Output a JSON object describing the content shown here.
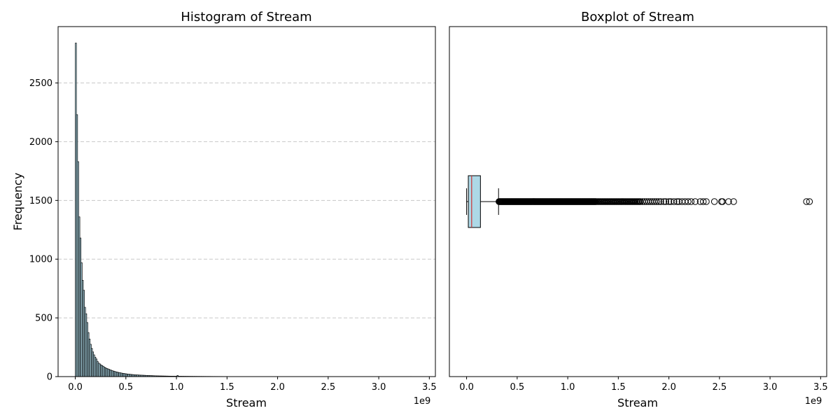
{
  "chart_data": [
    {
      "type": "bar",
      "title": "Histogram of Stream",
      "xlabel": "Stream",
      "ylabel": "Frequency",
      "x_offset_label": "1e9",
      "xlim": [
        -0.17,
        3.56
      ],
      "ylim": [
        0,
        2980
      ],
      "x_ticks": [
        0.0,
        0.5,
        1.0,
        1.5,
        2.0,
        2.5,
        3.0,
        3.5
      ],
      "x_tick_labels": [
        "0.0",
        "0.5",
        "1.0",
        "1.5",
        "2.0",
        "2.5",
        "3.0",
        "3.5"
      ],
      "y_ticks": [
        0,
        500,
        1000,
        1500,
        2000,
        2500
      ],
      "y_tick_labels": [
        "0",
        "500",
        "1000",
        "1500",
        "2000",
        "2500"
      ],
      "grid": "y-dashed",
      "bar_color": "#add8e6",
      "edge_color": "#000000",
      "bin_width": 0.0113,
      "bin_starts": [
        0.0,
        0.0113,
        0.0226,
        0.0339,
        0.0452,
        0.0565,
        0.0678,
        0.0791,
        0.0904,
        0.1017,
        0.113,
        0.1243,
        0.1356,
        0.1469,
        0.1582,
        0.1695,
        0.1808,
        0.1921,
        0.2034,
        0.2147,
        0.226,
        0.2373,
        0.2486,
        0.2599,
        0.2712,
        0.2825,
        0.2938,
        0.3051,
        0.3164,
        0.3277,
        0.339,
        0.3503,
        0.3616,
        0.3729,
        0.3842,
        0.3955,
        0.4068,
        0.4181,
        0.4294,
        0.4407,
        0.452,
        0.4633,
        0.4746,
        0.4859,
        0.4972,
        0.5085,
        0.5198,
        0.5311,
        0.5424,
        0.5537,
        0.565,
        0.5763,
        0.5876,
        0.5989,
        0.6102,
        0.6215,
        0.6328,
        0.6441,
        0.6554,
        0.6667,
        0.678,
        0.6893,
        0.7006,
        0.7119,
        0.7232,
        0.7345,
        0.7458,
        0.7571,
        0.7684,
        0.7797,
        0.791,
        0.8023,
        0.8136,
        0.8249,
        0.8362,
        0.8475,
        0.8588,
        0.8701,
        0.8814,
        0.8927,
        0.904,
        0.9153,
        0.9266,
        0.9379,
        0.9492,
        0.9605,
        0.9718,
        0.9831,
        0.9944,
        1.0057,
        1.017,
        1.0283,
        1.0396,
        1.0509,
        1.0622,
        1.0735,
        1.0848,
        1.0961,
        1.1074,
        1.1187,
        1.13,
        1.1413,
        1.1526,
        1.1639,
        1.1752,
        1.1865,
        1.1978,
        1.2091,
        1.2204,
        1.2317,
        1.243,
        1.2543,
        1.2656,
        1.2769,
        1.2882,
        1.2995,
        1.3108,
        1.3221,
        1.3334,
        1.3447,
        1.356,
        1.3673,
        1.3786,
        1.3899,
        1.4012,
        1.4125,
        1.4238,
        1.4351,
        1.4464,
        1.4577,
        1.469,
        1.4803,
        1.4916,
        1.5029,
        1.5142,
        1.5255,
        1.5368,
        1.5481,
        1.5594,
        1.5707,
        1.582,
        1.5933,
        1.6046,
        1.6159,
        1.6272,
        1.6385,
        1.6498,
        1.6611,
        1.6724,
        1.6837,
        1.695,
        1.7063,
        1.7176,
        1.7289,
        1.7402,
        1.7515,
        1.7628,
        1.7741,
        1.7854,
        1.7967,
        1.808,
        1.8193,
        1.8306,
        1.8419,
        1.8532,
        1.8645,
        1.8758,
        1.8871,
        1.8984,
        1.9097,
        1.921,
        1.9323,
        1.9436,
        1.9549,
        1.9662,
        1.9775,
        1.9888,
        2.0001,
        2.0114,
        2.0227,
        2.034,
        2.0453,
        2.0566,
        2.0679,
        2.0792,
        2.0905,
        2.1018,
        2.1131,
        2.1244,
        2.1357,
        2.147,
        2.1583,
        2.1696,
        2.1809,
        2.1922,
        2.2035,
        2.2148,
        2.2261,
        2.2374,
        2.2487,
        2.26,
        2.2713,
        2.2826,
        2.2939,
        2.3052,
        2.3165,
        2.3278,
        2.3391,
        2.3504,
        2.3617,
        2.373,
        2.3843,
        2.3956,
        2.4069,
        2.4182,
        2.4295,
        2.4408,
        2.4521,
        2.4634,
        2.4747,
        2.486,
        2.4973,
        2.5086,
        2.5199,
        2.5312,
        2.5425,
        2.5538,
        2.5651,
        2.5764,
        2.5877,
        2.599,
        2.6103,
        2.6216,
        2.6329,
        2.6442,
        2.6555,
        2.6668,
        2.6781,
        2.6894,
        2.7007,
        2.712,
        2.7233,
        2.7346,
        2.7459,
        2.7572,
        2.7685,
        2.7798,
        2.7911,
        2.8024,
        2.8137,
        2.825,
        2.8363,
        2.8476,
        2.8589,
        2.8702,
        2.8815,
        2.8928,
        2.9041,
        2.9154,
        2.9267,
        2.938,
        2.9493,
        2.9606,
        2.9719,
        2.9832,
        2.9945,
        3.0058,
        3.0171,
        3.0284,
        3.0397,
        3.051,
        3.0623,
        3.0736,
        3.0849,
        3.0962,
        3.1075,
        3.1188,
        3.1301,
        3.1414,
        3.1527,
        3.164,
        3.1753,
        3.1866,
        3.1979,
        3.2092,
        3.2205,
        3.2318,
        3.2431,
        3.2544,
        3.2657,
        3.277,
        3.2883,
        3.2996,
        3.3109,
        3.3222,
        3.3335
      ],
      "values": [
        2840,
        2230,
        1830,
        1360,
        1180,
        970,
        820,
        735,
        590,
        535,
        460,
        375,
        320,
        275,
        240,
        210,
        185,
        165,
        150,
        130,
        115,
        108,
        100,
        94,
        88,
        80,
        75,
        70,
        66,
        62,
        58,
        54,
        50,
        47,
        44,
        41,
        39,
        36,
        34,
        32,
        30,
        28,
        27,
        25,
        24,
        22,
        21,
        20,
        19,
        18,
        17,
        16,
        15,
        14.5,
        14,
        13.5,
        13,
        12.5,
        12,
        11.5,
        11,
        10.5,
        10,
        9.5,
        9,
        8.6,
        8.2,
        7.8,
        7.4,
        7,
        6.7,
        6.4,
        6.1,
        5.8,
        5.6,
        5.4,
        5.2,
        5,
        4.8,
        4.6,
        4.4,
        4.2,
        4,
        3.9,
        3.8,
        3.7,
        3.6,
        3.5,
        3.4,
        10,
        3.2,
        3.1,
        3,
        2.9,
        2.8,
        2.7,
        2.6,
        2.5,
        2.5,
        2.4,
        2.3,
        2.3,
        2.2,
        2.1,
        2.1,
        2,
        2,
        1.9,
        1.9,
        1.8,
        1.8,
        1.7,
        1.7,
        1.6,
        1.6,
        1.5,
        1.5,
        1.5,
        1.4,
        1.4,
        1.3,
        1.3,
        1.3,
        1.2,
        1.2,
        1.2,
        1.1,
        1.1,
        1.1,
        1,
        1,
        1,
        1,
        0.9,
        0.9,
        0.9,
        0.9,
        0.8,
        0.8,
        0.8,
        0.8,
        0.7,
        0.7,
        0.7,
        0.7,
        0.7,
        0.6,
        0.6,
        0.6,
        0.6,
        0.6,
        0.5,
        0.5,
        0.5,
        0.5,
        0.5,
        0.5,
        0.4,
        0.4,
        0.4,
        0.4,
        0.4,
        0.4,
        0.4,
        0.3,
        0.3,
        0.3,
        0.3,
        0.3,
        0.3,
        0.3,
        0.3,
        0.3,
        0.2,
        0.2,
        0.2,
        0.2,
        0.2,
        0.2,
        0.2,
        0.2,
        0.2,
        0.2,
        0.2,
        0.2,
        0.2,
        0.1,
        0.1,
        0.1,
        0.1,
        0.1,
        0.1,
        0.1,
        0.1,
        0.1,
        0.1,
        0.1,
        0.1,
        0.1,
        0.1,
        0.1,
        0.1,
        0.1,
        0.1,
        0.1,
        0.1,
        0.1,
        0.1,
        0.1,
        0.1,
        0.1,
        0.1,
        0.1,
        0.1,
        0.1,
        0.1,
        0.1,
        0.1,
        0.1,
        0,
        0,
        0,
        0,
        0,
        0,
        0,
        0,
        0,
        0,
        0,
        0,
        0,
        0,
        0,
        0,
        0,
        0,
        0,
        0,
        0,
        0,
        0,
        0,
        0,
        0,
        0,
        0,
        0,
        0,
        0,
        0,
        0,
        0,
        0,
        0,
        0,
        0,
        0,
        0,
        0,
        0,
        0,
        0,
        0,
        0,
        0,
        0,
        0,
        0,
        0,
        0,
        0,
        0,
        0,
        0,
        0,
        0,
        0,
        0,
        0,
        0,
        0,
        0,
        0,
        0,
        0,
        0,
        0,
        0,
        0,
        0,
        0,
        0,
        1
      ]
    },
    {
      "type": "boxplot",
      "title": "Boxplot of Stream",
      "xlabel": "Stream",
      "x_offset_label": "1e9",
      "xlim": [
        -0.17,
        3.56
      ],
      "x_ticks": [
        0.0,
        0.5,
        1.0,
        1.5,
        2.0,
        2.5,
        3.0,
        3.5
      ],
      "x_tick_labels": [
        "0.0",
        "0.5",
        "1.0",
        "1.5",
        "2.0",
        "2.5",
        "3.0",
        "3.5"
      ],
      "box_color": "#add8e6",
      "median_color": "#cc3333",
      "whisker_low": 0.0,
      "q1": 0.017,
      "median": 0.05,
      "q3": 0.137,
      "whisker_high": 0.316,
      "outliers": [
        0.32,
        0.325,
        0.33,
        0.335,
        0.34,
        0.345,
        0.35,
        0.355,
        0.36,
        0.365,
        0.37,
        0.375,
        0.38,
        0.385,
        0.39,
        0.395,
        0.4,
        0.405,
        0.41,
        0.415,
        0.42,
        0.425,
        0.43,
        0.435,
        0.44,
        0.445,
        0.45,
        0.455,
        0.46,
        0.465,
        0.47,
        0.475,
        0.48,
        0.485,
        0.49,
        0.495,
        0.5,
        0.505,
        0.51,
        0.515,
        0.52,
        0.525,
        0.53,
        0.535,
        0.54,
        0.545,
        0.55,
        0.555,
        0.56,
        0.565,
        0.57,
        0.575,
        0.58,
        0.585,
        0.59,
        0.595,
        0.6,
        0.605,
        0.61,
        0.615,
        0.62,
        0.625,
        0.63,
        0.635,
        0.64,
        0.645,
        0.65,
        0.655,
        0.66,
        0.665,
        0.67,
        0.675,
        0.68,
        0.685,
        0.69,
        0.695,
        0.7,
        0.705,
        0.71,
        0.715,
        0.72,
        0.725,
        0.73,
        0.735,
        0.74,
        0.745,
        0.75,
        0.755,
        0.76,
        0.765,
        0.77,
        0.775,
        0.78,
        0.785,
        0.79,
        0.795,
        0.8,
        0.805,
        0.81,
        0.815,
        0.82,
        0.825,
        0.83,
        0.835,
        0.84,
        0.845,
        0.85,
        0.855,
        0.86,
        0.865,
        0.87,
        0.875,
        0.88,
        0.885,
        0.89,
        0.895,
        0.9,
        0.905,
        0.91,
        0.915,
        0.92,
        0.925,
        0.93,
        0.935,
        0.94,
        0.945,
        0.95,
        0.955,
        0.96,
        0.965,
        0.97,
        0.975,
        0.98,
        0.985,
        0.99,
        0.995,
        1.0,
        1.005,
        1.01,
        1.015,
        1.02,
        1.025,
        1.03,
        1.035,
        1.04,
        1.045,
        1.05,
        1.055,
        1.06,
        1.065,
        1.07,
        1.075,
        1.08,
        1.085,
        1.09,
        1.095,
        1.1,
        1.105,
        1.11,
        1.115,
        1.12,
        1.125,
        1.13,
        1.135,
        1.14,
        1.145,
        1.15,
        1.155,
        1.16,
        1.165,
        1.17,
        1.175,
        1.18,
        1.185,
        1.19,
        1.195,
        1.2,
        1.205,
        1.21,
        1.215,
        1.22,
        1.225,
        1.23,
        1.235,
        1.24,
        1.245,
        1.25,
        1.255,
        1.26,
        1.265,
        1.27,
        1.275,
        1.28,
        1.29,
        1.3,
        1.31,
        1.32,
        1.33,
        1.34,
        1.35,
        1.36,
        1.37,
        1.38,
        1.39,
        1.4,
        1.41,
        1.42,
        1.43,
        1.44,
        1.45,
        1.46,
        1.47,
        1.48,
        1.49,
        1.5,
        1.51,
        1.52,
        1.53,
        1.54,
        1.55,
        1.56,
        1.57,
        1.58,
        1.59,
        1.6,
        1.61,
        1.62,
        1.63,
        1.64,
        1.65,
        1.66,
        1.67,
        1.68,
        1.69,
        1.7,
        1.71,
        1.72,
        1.74,
        1.76,
        1.78,
        1.8,
        1.82,
        1.84,
        1.86,
        1.88,
        1.9,
        1.92,
        1.95,
        1.97,
        2.0,
        2.02,
        2.05,
        2.08,
        2.1,
        2.13,
        2.16,
        2.19,
        2.22,
        2.26,
        2.31,
        2.34,
        2.37,
        2.45,
        2.52,
        2.53,
        2.59,
        2.64,
        3.36,
        3.39
      ]
    }
  ]
}
